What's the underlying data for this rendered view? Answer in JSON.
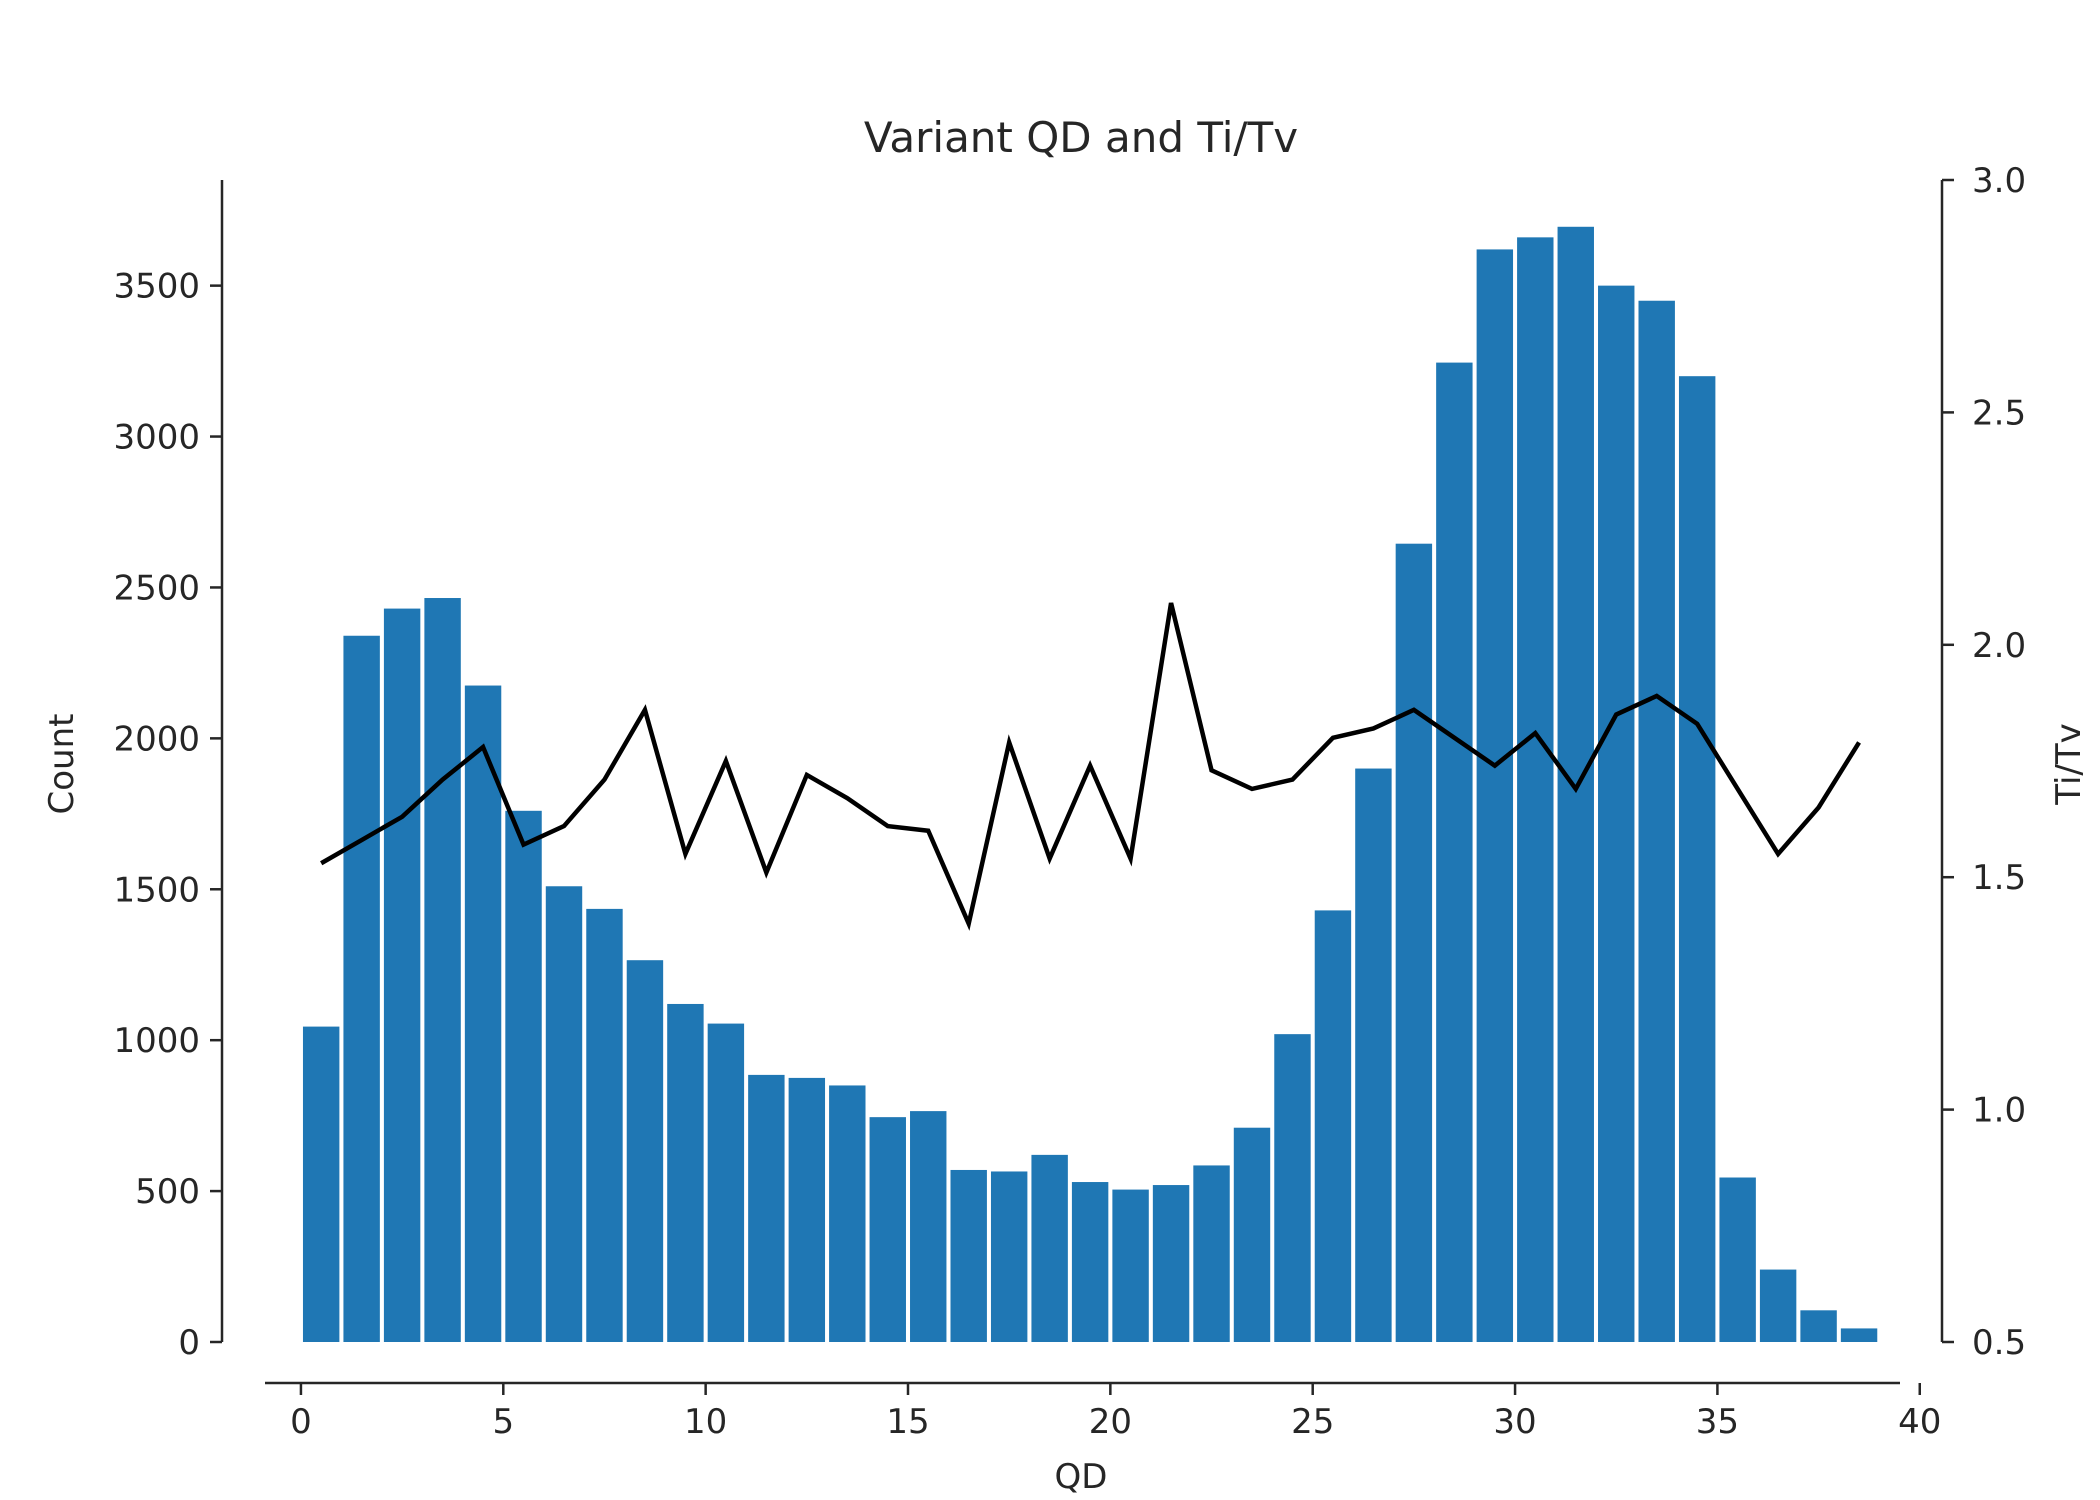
{
  "chart_data": {
    "type": "bar",
    "title": "Variant QD and Ti/Tv",
    "xlabel": "QD",
    "ylabel": "Count",
    "y2label": "Ti/Tv",
    "xlim": [
      -2,
      40.5
    ],
    "ylim": [
      0,
      3850
    ],
    "y2lim": [
      0.5,
      3.0
    ],
    "xticks": [
      0,
      5,
      10,
      15,
      20,
      25,
      30,
      35,
      40
    ],
    "yticks": [
      0,
      500,
      1000,
      1500,
      2000,
      2500,
      3000,
      3500
    ],
    "y2ticks": [
      "0.5",
      "1.0",
      "1.5",
      "2.0",
      "2.5",
      "3.0"
    ],
    "bar_color": "#1f77b4",
    "line_color": "#000000",
    "grid": false,
    "bar_width": 0.9,
    "bars": {
      "x": [
        0.5,
        1.5,
        2.5,
        3.5,
        4.5,
        5.5,
        6.5,
        7.5,
        8.5,
        9.5,
        10.5,
        11.5,
        12.5,
        13.5,
        14.5,
        15.5,
        16.5,
        17.5,
        18.5,
        19.5,
        20.5,
        21.5,
        22.5,
        23.5,
        24.5,
        25.5,
        26.5,
        27.5,
        28.5,
        29.5,
        30.5,
        31.5,
        32.5,
        33.5,
        34.5,
        35.5,
        36.5,
        37.5,
        38.5
      ],
      "values": [
        1045,
        2340,
        2430,
        2465,
        2175,
        1760,
        1510,
        1435,
        1265,
        1120,
        1055,
        885,
        875,
        850,
        745,
        765,
        570,
        565,
        620,
        530,
        505,
        520,
        585,
        710,
        1020,
        1430,
        1900,
        2645,
        3245,
        3620,
        3660,
        3695,
        3500,
        3450,
        3200,
        545,
        240,
        105,
        45
      ]
    },
    "line": {
      "name": "Ti/Tv",
      "x": [
        0.5,
        1.5,
        2.5,
        3.5,
        4.5,
        5.5,
        6.5,
        7.5,
        8.5,
        9.5,
        10.5,
        11.5,
        12.5,
        13.5,
        14.5,
        15.5,
        16.5,
        17.5,
        18.5,
        19.5,
        20.5,
        21.5,
        22.5,
        23.5,
        24.5,
        25.5,
        26.5,
        27.5,
        28.5,
        29.5,
        30.5,
        31.5,
        32.5,
        33.5,
        34.5,
        35.5,
        36.5,
        37.5,
        38.5
      ],
      "values": [
        1.53,
        1.58,
        1.63,
        1.71,
        1.78,
        1.57,
        1.61,
        1.71,
        1.86,
        1.55,
        1.75,
        1.51,
        1.72,
        1.67,
        1.61,
        1.6,
        1.4,
        1.79,
        1.54,
        1.74,
        1.54,
        2.09,
        1.73,
        1.69,
        1.71,
        1.8,
        1.82,
        1.86,
        1.8,
        1.74,
        1.81,
        1.69,
        1.85,
        1.89,
        1.83,
        1.69,
        1.55,
        1.65,
        1.79
      ]
    }
  }
}
